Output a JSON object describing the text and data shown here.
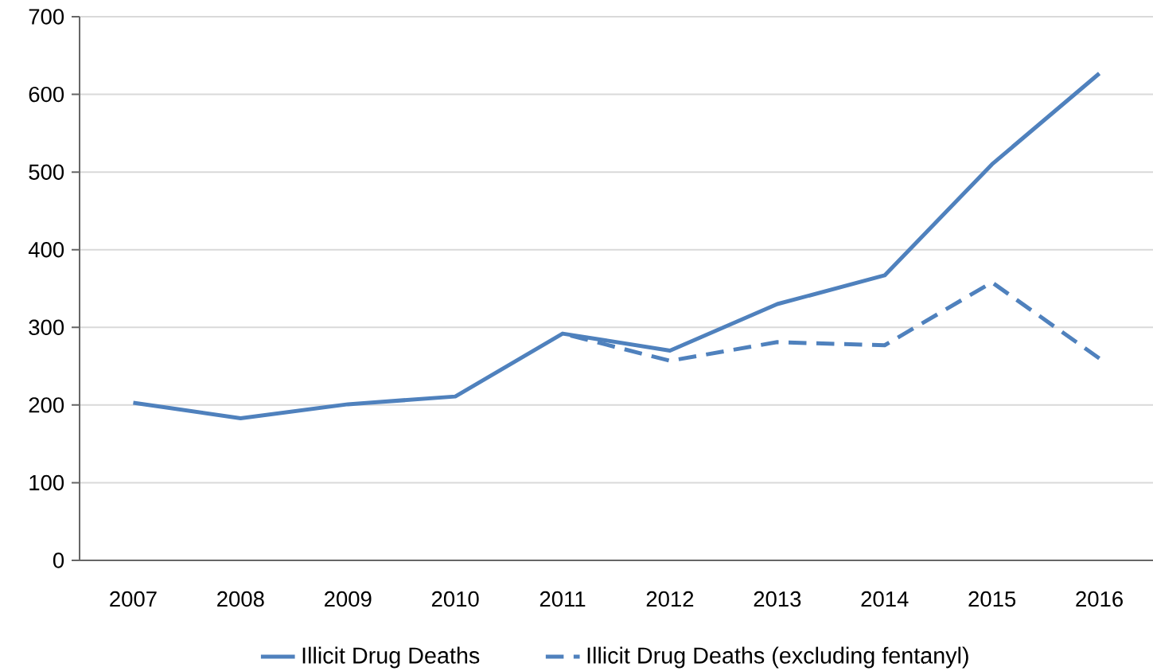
{
  "chart_data": {
    "type": "line",
    "categories": [
      "2007",
      "2008",
      "2009",
      "2010",
      "2011",
      "2012",
      "2013",
      "2014",
      "2015",
      "2016"
    ],
    "series": [
      {
        "name": "Illicit Drug Deaths",
        "color": "#4f81bd",
        "line_style": "solid",
        "values": [
          203,
          183,
          201,
          211,
          292,
          270,
          330,
          367,
          510,
          627
        ]
      },
      {
        "name": "Illicit Drug Deaths (excluding fentanyl)",
        "color": "#4f81bd",
        "line_style": "dashed",
        "values": [
          null,
          null,
          null,
          null,
          292,
          257,
          281,
          277,
          358,
          260
        ]
      }
    ],
    "ylim": [
      0,
      700
    ],
    "yticks": [
      0,
      100,
      200,
      300,
      400,
      500,
      600,
      700
    ],
    "grid": "y",
    "legend": "bottom"
  }
}
